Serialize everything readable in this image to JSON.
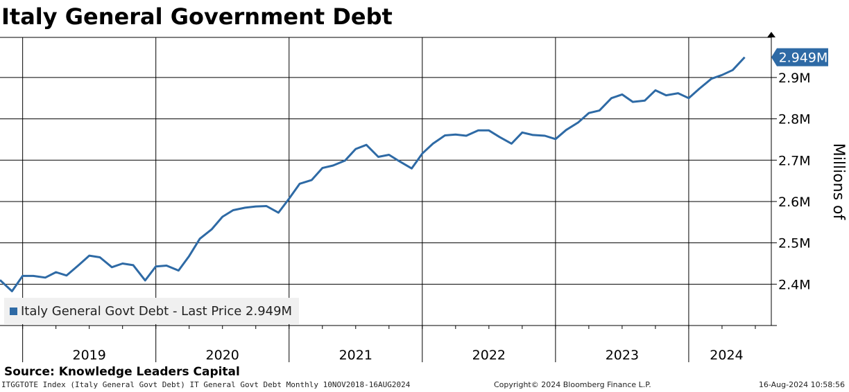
{
  "chart_data": {
    "type": "line",
    "title": "Italy General Government Debt",
    "ylabel": "Millions of",
    "ylim": [
      2.3,
      2.997
    ],
    "yticks": [
      2.4,
      2.5,
      2.6,
      2.7,
      2.8,
      2.9
    ],
    "ytick_labels": [
      "2.4M",
      "2.5M",
      "2.6M",
      "2.7M",
      "2.8M",
      "2.9M"
    ],
    "xlim": [
      2018.83,
      2024.62
    ],
    "xtick_labels": [
      "2019",
      "2020",
      "2021",
      "2022",
      "2023",
      "2024"
    ],
    "grid": true,
    "legend_placement": "bottom-left",
    "last_value_label": "2.949M",
    "color": "#2e6aa5",
    "series": [
      {
        "name": "Italy General Govt Debt - Last Price 2.949M",
        "x": [
          2018.83,
          2018.92,
          2019.0,
          2019.08,
          2019.17,
          2019.25,
          2019.33,
          2019.42,
          2019.5,
          2019.58,
          2019.67,
          2019.75,
          2019.83,
          2019.92,
          2020.0,
          2020.08,
          2020.17,
          2020.25,
          2020.33,
          2020.42,
          2020.5,
          2020.58,
          2020.67,
          2020.75,
          2020.83,
          2020.92,
          2021.0,
          2021.08,
          2021.17,
          2021.25,
          2021.33,
          2021.42,
          2021.5,
          2021.58,
          2021.67,
          2021.75,
          2021.83,
          2021.92,
          2022.0,
          2022.08,
          2022.17,
          2022.25,
          2022.33,
          2022.42,
          2022.5,
          2022.58,
          2022.67,
          2022.75,
          2022.83,
          2022.92,
          2023.0,
          2023.08,
          2023.17,
          2023.25,
          2023.33,
          2023.42,
          2023.5,
          2023.58,
          2023.67,
          2023.75,
          2023.83,
          2023.92,
          2024.0,
          2024.08,
          2024.17,
          2024.25,
          2024.33,
          2024.42,
          2024.5
        ],
        "values": [
          2.41,
          2.383,
          2.42,
          2.42,
          2.416,
          2.429,
          2.421,
          2.446,
          2.469,
          2.465,
          2.441,
          2.45,
          2.446,
          2.409,
          2.443,
          2.445,
          2.433,
          2.468,
          2.51,
          2.533,
          2.563,
          2.579,
          2.585,
          2.588,
          2.589,
          2.573,
          2.607,
          2.643,
          2.652,
          2.681,
          2.687,
          2.699,
          2.727,
          2.737,
          2.708,
          2.713,
          2.697,
          2.68,
          2.716,
          2.74,
          2.76,
          2.762,
          2.759,
          2.772,
          2.772,
          2.756,
          2.74,
          2.767,
          2.761,
          2.759,
          2.751,
          2.773,
          2.791,
          2.814,
          2.82,
          2.85,
          2.859,
          2.841,
          2.844,
          2.869,
          2.857,
          2.862,
          2.85,
          2.873,
          2.897,
          2.906,
          2.918,
          2.949,
          null
        ]
      }
    ]
  },
  "source_text": "Source: Knowledge Leaders Capital",
  "footer": {
    "left": "ITGGTOTE Index (Italy General Govt Debt) IT General Govt Debt  Monthly 10NOV2018-16AUG2024",
    "center": "Copyright© 2024 Bloomberg Finance L.P.",
    "right": "16-Aug-2024 10:58:56"
  }
}
